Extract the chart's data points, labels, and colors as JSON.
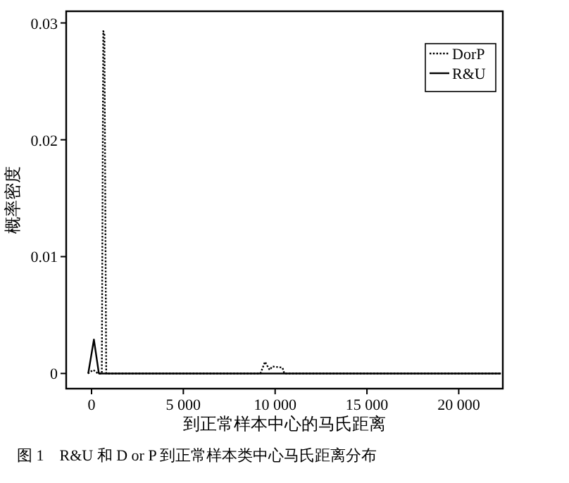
{
  "chart_data": {
    "type": "line",
    "xlabel": "到正常样本中心的马氏距离",
    "ylabel": "概率密度",
    "annotations": [
      "图 1　R&U 和 D or P 到正常样本类中心马氏距离分布"
    ],
    "xlim": [
      -1380,
      22400
    ],
    "ylim": [
      -0.0013,
      0.031
    ],
    "xticks": [
      0,
      {
        "value": 5000,
        "label": "5 000"
      },
      {
        "value": 10000,
        "label": "10 000"
      },
      {
        "value": 15000,
        "label": "15 000"
      },
      {
        "value": 20000,
        "label": "20 000"
      }
    ],
    "yticks": [
      0,
      0.01,
      0.02,
      0.03
    ],
    "legend": "top right",
    "grid": false,
    "series": [
      {
        "name": "DorP",
        "color": "#000000",
        "line_style": "dotted",
        "x": [
          -200,
          100,
          350,
          560,
          640,
          700,
          800,
          9200,
          9450,
          9700,
          9850,
          10400,
          10500,
          22300
        ],
        "values": [
          0,
          0.0003,
          0,
          0,
          0.0293,
          0.029,
          0,
          0,
          0.001,
          0.0003,
          0.0006,
          0.0005,
          0,
          0
        ]
      },
      {
        "name": "R&U",
        "color": "#000000",
        "line_style": "solid",
        "x": [
          -180,
          130,
          400,
          22300
        ],
        "values": [
          0,
          0.0029,
          0,
          0
        ]
      }
    ]
  }
}
